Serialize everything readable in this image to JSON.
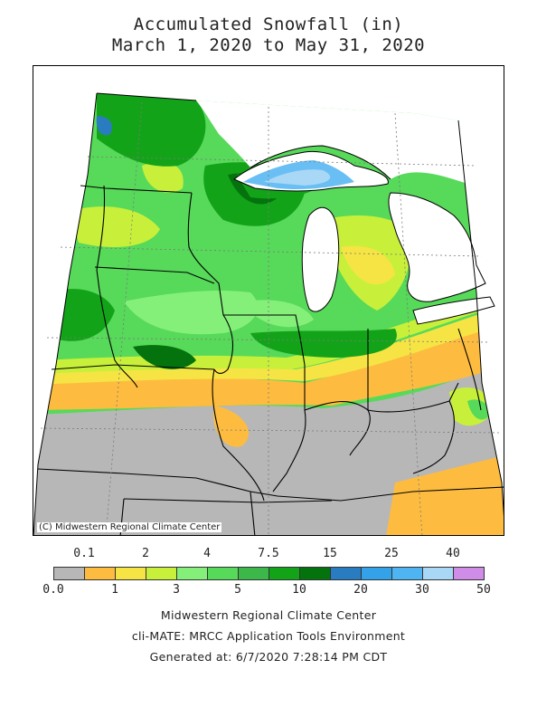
{
  "title": {
    "line1": "Accumulated Snowfall (in)",
    "line2": "March 1, 2020 to May 31, 2020"
  },
  "map": {
    "credit": "(C) Midwestern Regional Climate Center"
  },
  "legend": {
    "top_labels": [
      "0.1",
      "2",
      "4",
      "7.5",
      "15",
      "25",
      "40"
    ],
    "bottom_labels": [
      "0.0",
      "1",
      "3",
      "5",
      "10",
      "20",
      "30",
      "50"
    ],
    "colors": [
      "#b7b7b7",
      "#fdbc3f",
      "#f6e444",
      "#c8f03a",
      "#84f07a",
      "#57d95a",
      "#3cb84a",
      "#13a319",
      "#04730d",
      "#2a7cc0",
      "#33a2e8",
      "#4fb4f2",
      "#a9d7f6",
      "#cf8de8"
    ]
  },
  "footer": {
    "line1": "Midwestern Regional Climate Center",
    "line2": "cli-MATE: MRCC Application Tools Environment",
    "line3": "Generated at: 6/7/2020 7:28:14 PM CDT"
  }
}
